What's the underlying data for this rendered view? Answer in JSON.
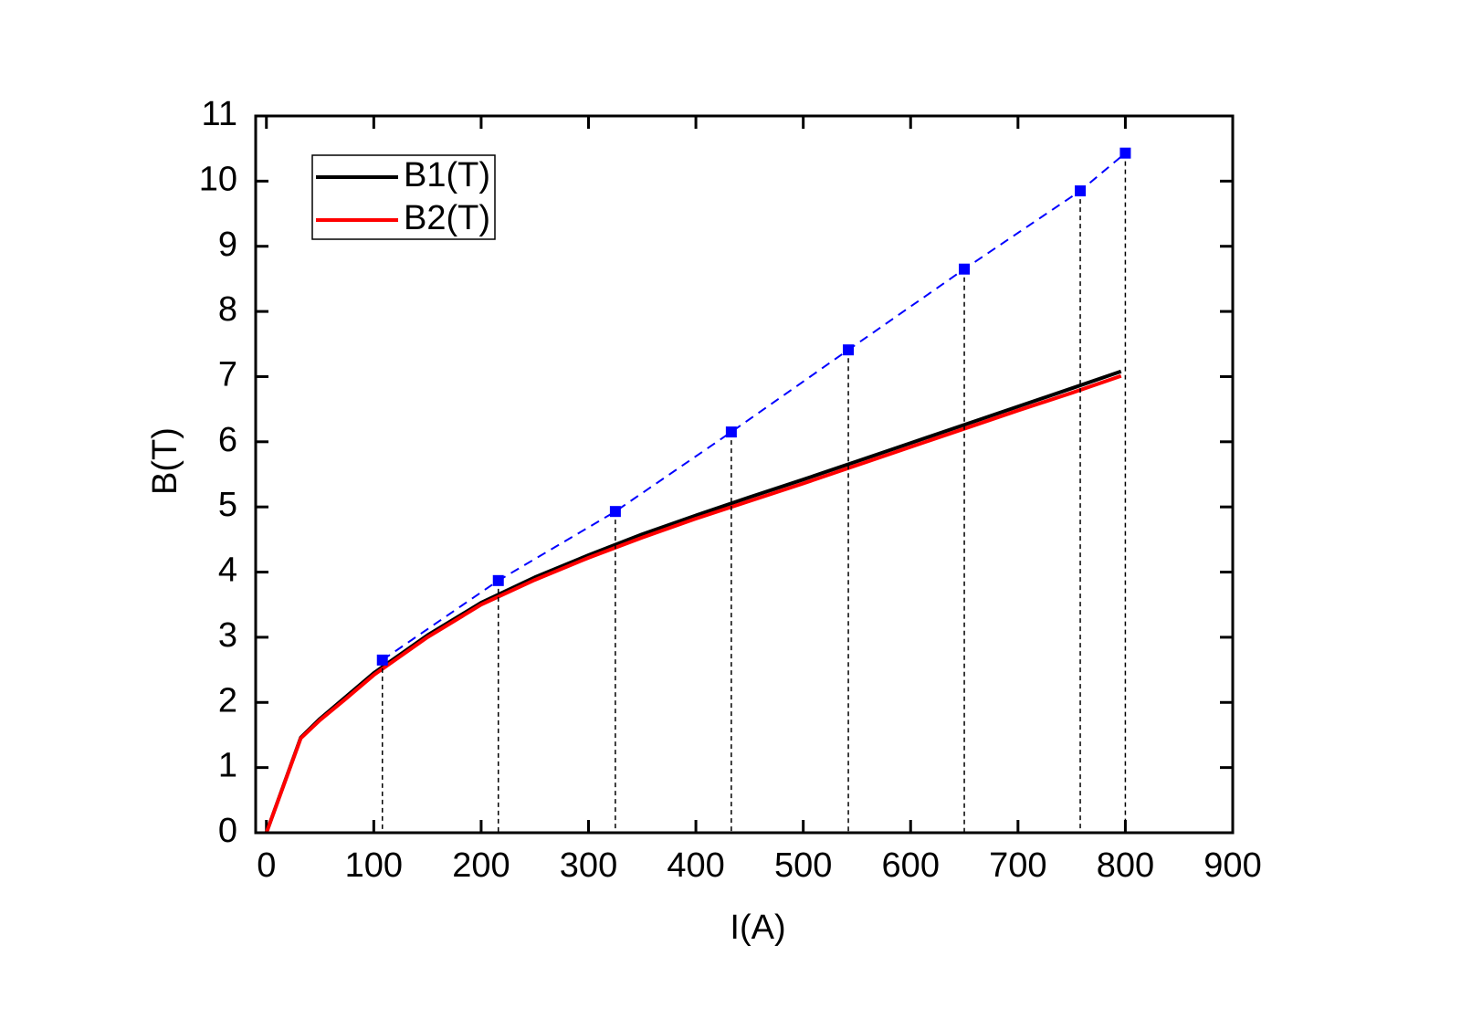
{
  "chart_data": {
    "type": "line",
    "xlabel": "I(A)",
    "ylabel": "B(T)",
    "xlim": [
      -10,
      900
    ],
    "xticks": [
      0,
      100,
      200,
      300,
      400,
      500,
      600,
      700,
      800,
      900
    ],
    "ylim": [
      0,
      11
    ],
    "yticks": [
      0,
      1,
      2,
      3,
      4,
      5,
      6,
      7,
      8,
      9,
      10,
      11
    ],
    "legend": "upper left",
    "series": [
      {
        "name": "B1(T)",
        "color": "#000000",
        "style": "solid",
        "x": [
          0,
          32,
          50,
          75,
          100,
          150,
          200,
          250,
          300,
          350,
          400,
          450,
          500,
          550,
          600,
          650,
          700,
          750,
          796
        ],
        "values": [
          0,
          1.46,
          1.75,
          2.1,
          2.45,
          3.03,
          3.53,
          3.92,
          4.26,
          4.58,
          4.87,
          5.15,
          5.42,
          5.7,
          5.98,
          6.26,
          6.54,
          6.82,
          7.08
        ]
      },
      {
        "name": "B2(T)",
        "color": "#ff0000",
        "style": "solid",
        "x": [
          0,
          32,
          50,
          75,
          100,
          150,
          200,
          250,
          300,
          350,
          400,
          450,
          500,
          550,
          600,
          650,
          700,
          750,
          796
        ],
        "values": [
          0,
          1.45,
          1.73,
          2.07,
          2.42,
          3.0,
          3.5,
          3.88,
          4.22,
          4.53,
          4.82,
          5.09,
          5.36,
          5.64,
          5.92,
          6.2,
          6.48,
          6.75,
          7.01
        ]
      },
      {
        "color": "#0000ff",
        "style": "dashed",
        "marker": "square",
        "droplines": true,
        "x": [
          108,
          216,
          325,
          433,
          542,
          650,
          758,
          800
        ],
        "values": [
          2.65,
          3.87,
          4.93,
          6.15,
          7.41,
          8.65,
          9.85,
          10.43
        ]
      }
    ]
  }
}
